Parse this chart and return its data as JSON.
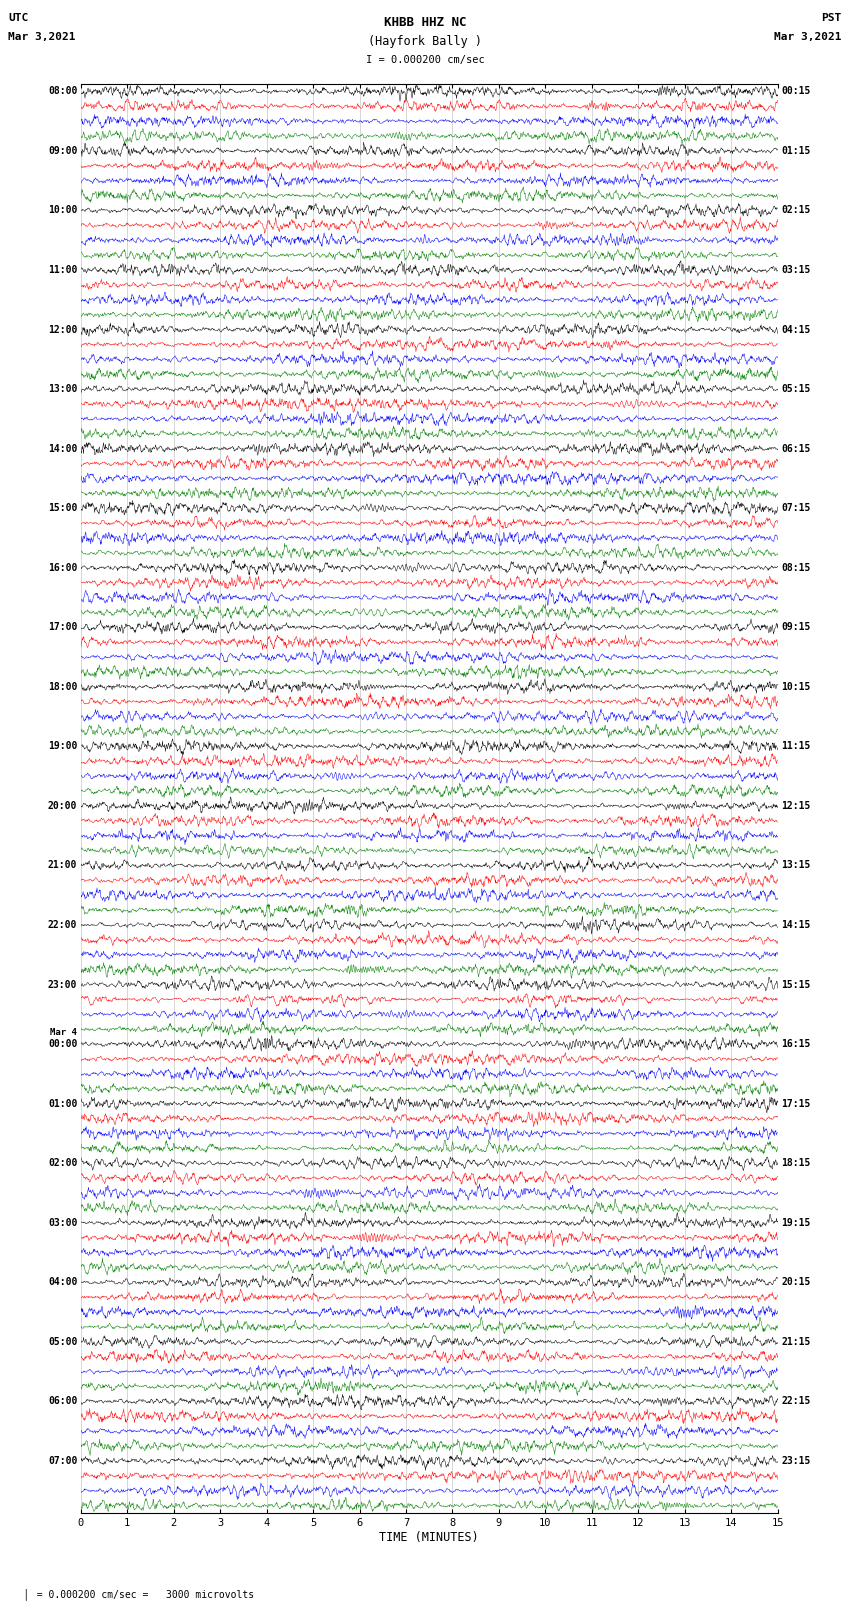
{
  "title_line1": "KHBB HHZ NC",
  "title_line2": "(Hayfork Bally )",
  "scale_text": "I = 0.000200 cm/sec",
  "left_label_line1": "UTC",
  "left_label_line2": "Mar 3,2021",
  "right_label_line1": "PST",
  "right_label_line2": "Mar 3,2021",
  "bottom_label": "TIME (MINUTES)",
  "footer_text": "= 0.000200 cm/sec =   3000 microvolts",
  "utc_times_main": [
    "08:00",
    "09:00",
    "10:00",
    "11:00",
    "12:00",
    "13:00",
    "14:00",
    "15:00",
    "16:00",
    "17:00",
    "18:00",
    "19:00",
    "20:00",
    "21:00",
    "22:00",
    "23:00",
    "00:00",
    "01:00",
    "02:00",
    "03:00",
    "04:00",
    "05:00",
    "06:00",
    "07:00"
  ],
  "utc_mar4_row": 16,
  "pst_times_main": [
    "00:15",
    "01:15",
    "02:15",
    "03:15",
    "04:15",
    "05:15",
    "06:15",
    "07:15",
    "08:15",
    "09:15",
    "10:15",
    "11:15",
    "12:15",
    "13:15",
    "14:15",
    "15:15",
    "16:15",
    "17:15",
    "18:15",
    "19:15",
    "20:15",
    "21:15",
    "22:15",
    "23:15"
  ],
  "colors": [
    "black",
    "red",
    "blue",
    "green"
  ],
  "n_rows": 24,
  "traces_per_row": 4,
  "x_min": 0,
  "x_max": 15,
  "bg_color": "white",
  "fig_width": 8.5,
  "fig_height": 16.13,
  "dpi": 100,
  "grid_color": "#888888",
  "top_border_color": "black"
}
